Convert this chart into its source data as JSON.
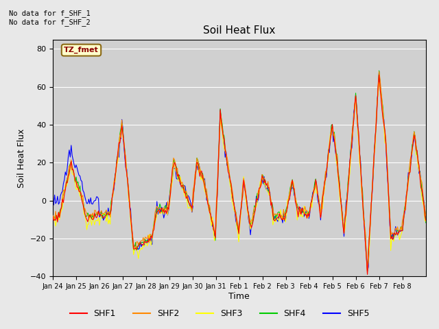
{
  "title": "Soil Heat Flux",
  "ylabel": "Soil Heat Flux",
  "xlabel": "Time",
  "ylim": [
    -40,
    85
  ],
  "yticks": [
    -40,
    -20,
    0,
    20,
    40,
    60,
    80
  ],
  "annotation_text": "No data for f_SHF_1\nNo data for f_SHF_2",
  "box_label": "TZ_fmet",
  "series_colors": {
    "SHF1": "#ff0000",
    "SHF2": "#ff8800",
    "SHF3": "#ffff00",
    "SHF4": "#00cc00",
    "SHF5": "#0000ff"
  },
  "legend_labels": [
    "SHF1",
    "SHF2",
    "SHF3",
    "SHF4",
    "SHF5"
  ],
  "xtick_labels": [
    "Jan 24",
    "Jan 25",
    "Jan 26",
    "Jan 27",
    "Jan 28",
    "Jan 29",
    "Jan 30",
    "Jan 31",
    "Feb 1",
    "Feb 2",
    "Feb 3",
    "Feb 4",
    "Feb 5",
    "Feb 6",
    "Feb 7",
    "Feb 8"
  ],
  "fig_bg_color": "#e8e8e8",
  "plot_bg_color": "#d0d0d0"
}
